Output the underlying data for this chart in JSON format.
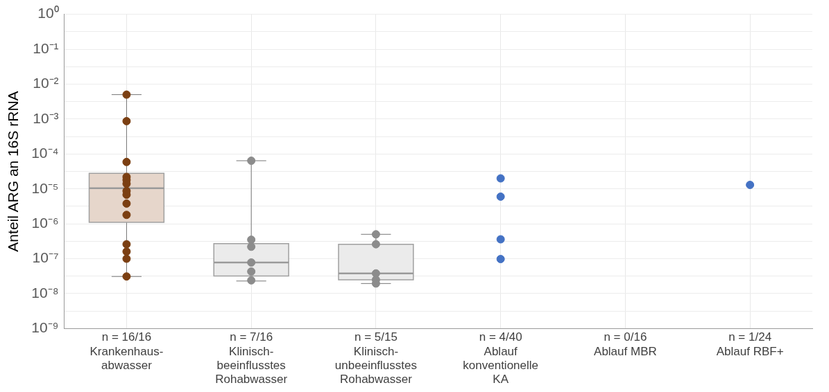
{
  "chart_data": {
    "type": "box",
    "ylabel": "Anteil ARG an 16S rRNA",
    "categories": [
      "n = 16/16\nKrankenhaus-\nabwasser",
      "n = 7/16\nKlinisch-\nbeeinflusstes\nRohabwasser",
      "n = 5/15\nKlinisch-\nunbeeinflusstes\nRohabwasser",
      "n = 4/40\nAblauf\nkonventionelle\nKA",
      "n = 0/16\nAblauf MBR",
      "n = 1/24\nAblauf RBF+"
    ],
    "log": "y",
    "ylim": [
      1e-09,
      1
    ],
    "yticks": [
      {
        "value": 1e-09,
        "label": "10⁻⁹"
      },
      {
        "value": 3.16e-09,
        "label": null
      },
      {
        "value": 1e-08,
        "label": "10⁻⁸"
      },
      {
        "value": 3.16e-08,
        "label": null
      },
      {
        "value": 1e-07,
        "label": "10⁻⁷"
      },
      {
        "value": 3.16e-07,
        "label": null
      },
      {
        "value": 1e-06,
        "label": "10⁻⁶"
      },
      {
        "value": 3.16e-06,
        "label": null
      },
      {
        "value": 1e-05,
        "label": "10⁻⁵"
      },
      {
        "value": 3.16e-05,
        "label": null
      },
      {
        "value": 0.0001,
        "label": "10⁻⁴"
      },
      {
        "value": 0.000316,
        "label": null
      },
      {
        "value": 0.001,
        "label": "10⁻³"
      },
      {
        "value": 0.00316,
        "label": null
      },
      {
        "value": 0.01,
        "label": "10⁻²"
      },
      {
        "value": 0.0316,
        "label": null
      },
      {
        "value": 0.1,
        "label": "10⁻¹"
      },
      {
        "value": 0.316,
        "label": null
      },
      {
        "value": 1,
        "label": "10⁰"
      }
    ],
    "grid": true,
    "series": [
      {
        "colors": [
          "#e6d6cb",
          "#ebebeb",
          "#ebebeb",
          null,
          null,
          null
        ],
        "boxes": [
          {
            "low": 3.1e-08,
            "q1": 1.1e-06,
            "median": 1.05e-05,
            "q3": 2.8e-05,
            "high": 0.005
          },
          {
            "low": 2.3e-08,
            "q1": 3.2e-08,
            "median": 7.8e-08,
            "q3": 2.7e-07,
            "high": 6.4e-05
          },
          {
            "low": 1.95e-08,
            "q1": 2.5e-08,
            "median": 3.8e-08,
            "q3": 2.6e-07,
            "high": 5e-07
          },
          null,
          null,
          null
        ]
      },
      {
        "type": "scatter",
        "color": "#7b3f12",
        "x": [
          "n = 16/16\nKrankenhaus-\nabwasser",
          "n = 16/16\nKrankenhaus-\nabwasser",
          "n = 16/16\nKrankenhaus-\nabwasser",
          "n = 16/16\nKrankenhaus-\nabwasser",
          "n = 16/16\nKrankenhaus-\nabwasser",
          "n = 16/16\nKrankenhaus-\nabwasser",
          "n = 16/16\nKrankenhaus-\nabwasser",
          "n = 16/16\nKrankenhaus-\nabwasser",
          "n = 16/16\nKrankenhaus-\nabwasser",
          "n = 16/16\nKrankenhaus-\nabwasser",
          "n = 16/16\nKrankenhaus-\nabwasser",
          "n = 16/16\nKrankenhaus-\nabwasser",
          "n = 16/16\nKrankenhaus-\nabwasser",
          "n = 16/16\nKrankenhaus-\nabwasser"
        ],
        "values": [
          0.005,
          0.00087,
          5.9e-05,
          2.2e-05,
          1.8e-05,
          1.4e-05,
          8.7e-06,
          6.8e-06,
          3.8e-06,
          1.8e-06,
          2.6e-07,
          1.6e-07,
          1e-07,
          3.1e-08
        ]
      },
      {
        "type": "scatter",
        "color": "#8c8c8c",
        "x": [
          "n = 7/16\nKlinisch-\nbeeinflusstes\nRohabwasser",
          "n = 7/16\nKlinisch-\nbeeinflusstes\nRohabwasser",
          "n = 7/16\nKlinisch-\nbeeinflusstes\nRohabwasser",
          "n = 7/16\nKlinisch-\nbeeinflusstes\nRohabwasser",
          "n = 7/16\nKlinisch-\nbeeinflusstes\nRohabwasser",
          "n = 7/16\nKlinisch-\nbeeinflusstes\nRohabwasser",
          "n = 5/15\nKlinisch-\nunbeeinflusstes\nRohabwasser",
          "n = 5/15\nKlinisch-\nunbeeinflusstes\nRohabwasser",
          "n = 5/15\nKlinisch-\nunbeeinflusstes\nRohabwasser",
          "n = 5/15\nKlinisch-\nunbeeinflusstes\nRohabwasser",
          "n = 5/15\nKlinisch-\nunbeeinflusstes\nRohabwasser"
        ],
        "values": [
          6.4e-05,
          3.5e-07,
          2.2e-07,
          7.8e-08,
          4.3e-08,
          2.4e-08,
          5e-07,
          2.6e-07,
          3.8e-08,
          2.5e-08,
          1.95e-08
        ]
      },
      {
        "type": "scatter",
        "color": "#4472c4",
        "x": [
          "n = 4/40\nAblauf\nkonventionelle\nKA",
          "n = 4/40\nAblauf\nkonventionelle\nKA",
          "n = 4/40\nAblauf\nkonventionelle\nKA",
          "n = 4/40\nAblauf\nkonventionelle\nKA",
          "n = 1/24\nAblauf RBF+"
        ],
        "values": [
          2e-05,
          6e-06,
          3.6e-07,
          9.8e-08,
          1.3e-05
        ]
      }
    ]
  }
}
